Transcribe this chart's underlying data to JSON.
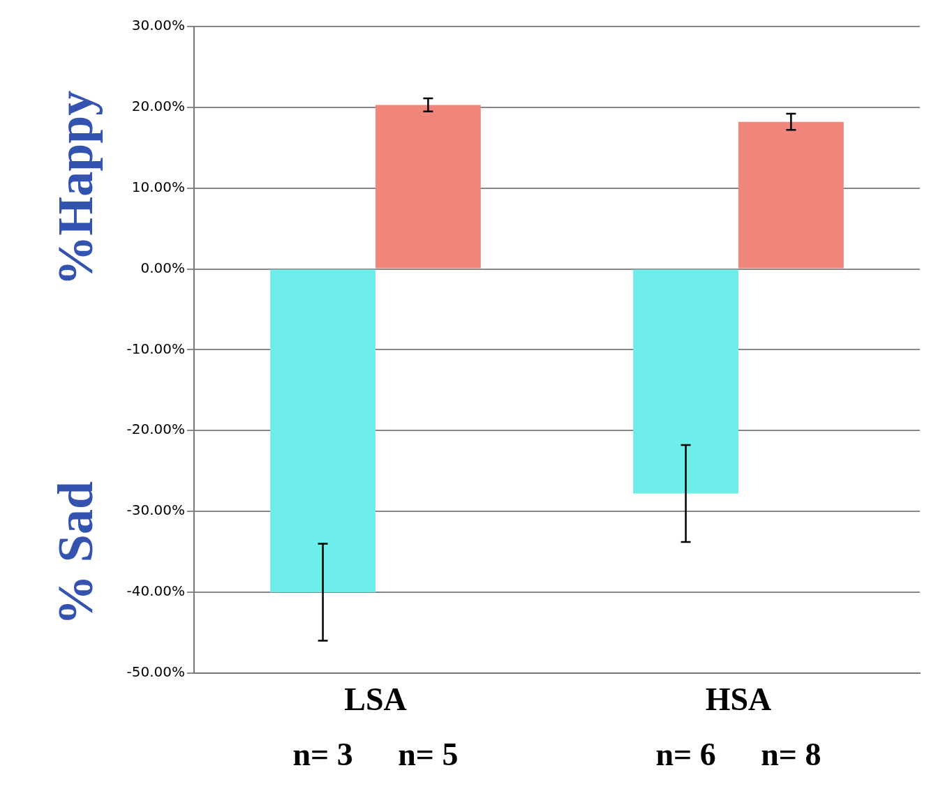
{
  "chart_data": {
    "type": "bar",
    "categories": [
      "LSA",
      "HSA"
    ],
    "series": [
      {
        "color": "#6eeeea",
        "values": [
          -40,
          -27.8
        ],
        "errors": [
          6,
          6
        ]
      },
      {
        "color": "#f0857c",
        "values": [
          20.3,
          18.2
        ],
        "errors": [
          0.8,
          1
        ]
      }
    ],
    "ylim": [
      -50,
      30
    ],
    "yticks": [
      {
        "value": -50,
        "label": "-50.00%"
      },
      {
        "value": -40,
        "label": "-40.00%"
      },
      {
        "value": -30,
        "label": "-30.00%"
      },
      {
        "value": -20,
        "label": "-20.00%"
      },
      {
        "value": -10,
        "label": "-10.00%"
      },
      {
        "value": 0,
        "label": "0.00%"
      },
      {
        "value": 10,
        "label": "10.00%"
      },
      {
        "value": 20,
        "label": "20.00%"
      },
      {
        "value": 30,
        "label": "30.00%"
      }
    ],
    "annotations": [
      "%Happy",
      "% Sad",
      "n= 3",
      "n= 5",
      "n= 6",
      "n= 8"
    ],
    "grid": "y",
    "legend": false
  }
}
